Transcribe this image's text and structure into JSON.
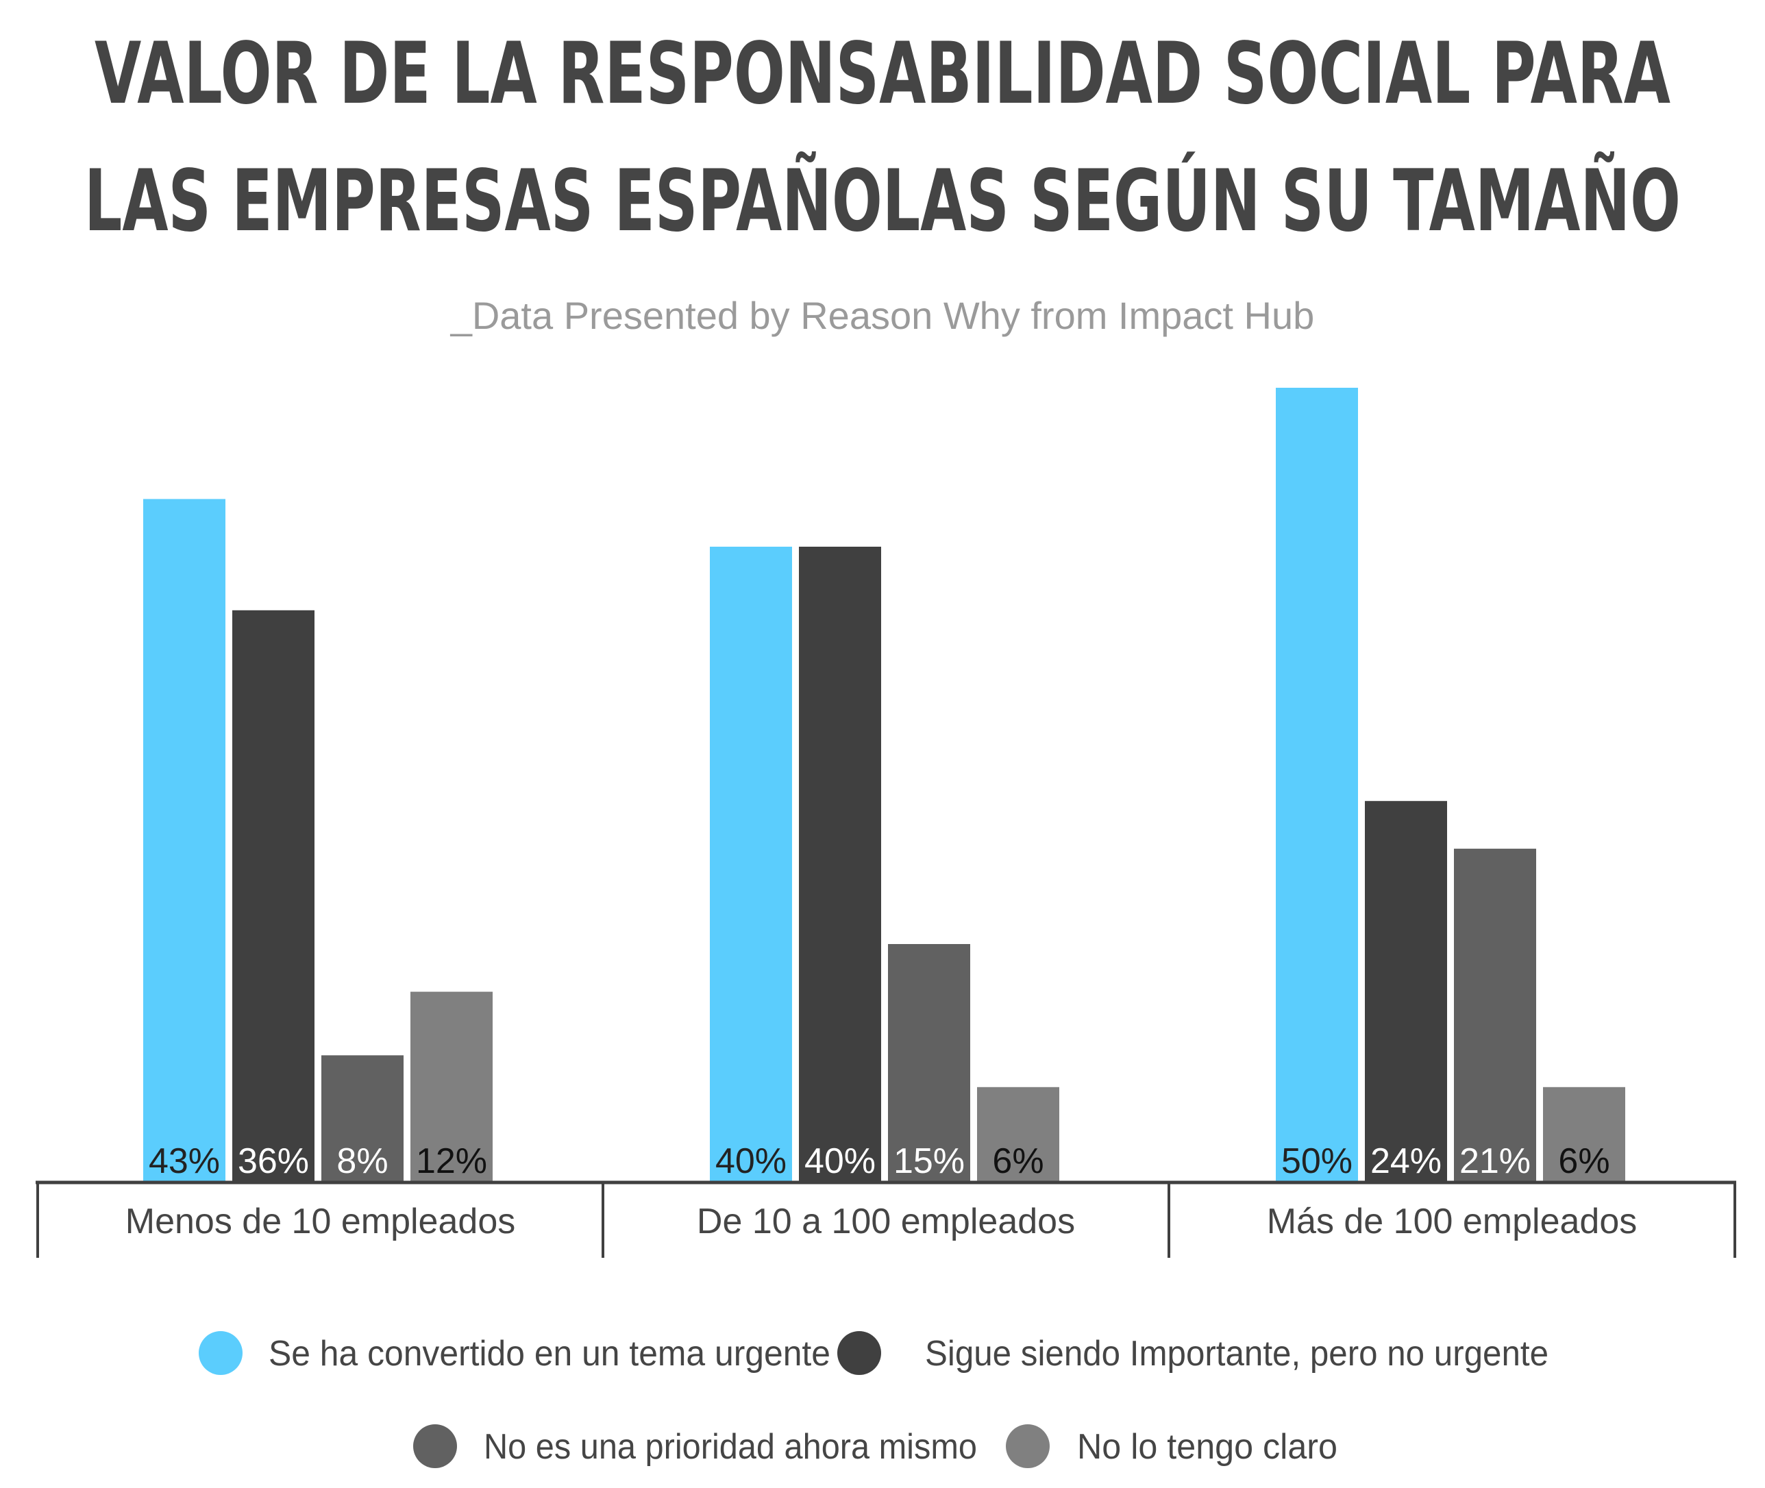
{
  "title_line1": "VALOR DE LA RESPONSABILIDAD SOCIAL PARA",
  "title_line2": "LAS EMPRESAS ESPAÑOLAS SEGÚN SU TAMAÑO",
  "subtitle": "_Data Presented by Reason Why from Impact Hub",
  "chart_data": {
    "type": "bar",
    "title": "VALOR DE LA RESPONSABILIDAD SOCIAL PARA LAS EMPRESAS ESPAÑOLAS SEGÚN SU TAMAÑO",
    "subtitle": "_Data Presented by Reason Why from Impact Hub",
    "categories": [
      "Menos de 10 empleados",
      "De 10 a 100 empleados",
      "Más de 100 empleados"
    ],
    "series": [
      {
        "name": "Se ha convertido en un tema urgente",
        "color": "#5bcdfd",
        "label_color": "#222222",
        "values": [
          43,
          40,
          50
        ],
        "labels": [
          "43%",
          "40%",
          "50%"
        ]
      },
      {
        "name": "Sigue siendo Importante, pero no urgente",
        "color": "#404040",
        "label_color": "#ffffff",
        "values": [
          36,
          40,
          24
        ],
        "labels": [
          "36%",
          "40%",
          "24%"
        ]
      },
      {
        "name": "No es una prioridad ahora mismo",
        "color": "#616161",
        "label_color": "#ffffff",
        "values": [
          8,
          15,
          21
        ],
        "labels": [
          "8%",
          "15%",
          "21%"
        ]
      },
      {
        "name": "No lo tengo claro",
        "color": "#808080",
        "label_color": "#111111",
        "values": [
          12,
          6,
          6
        ],
        "labels": [
          "12%",
          "6%",
          "6%"
        ]
      }
    ],
    "ylim": [
      0,
      50
    ],
    "unit": "%",
    "grid": false,
    "legend_position": "bottom",
    "xlabel": "",
    "ylabel": ""
  }
}
